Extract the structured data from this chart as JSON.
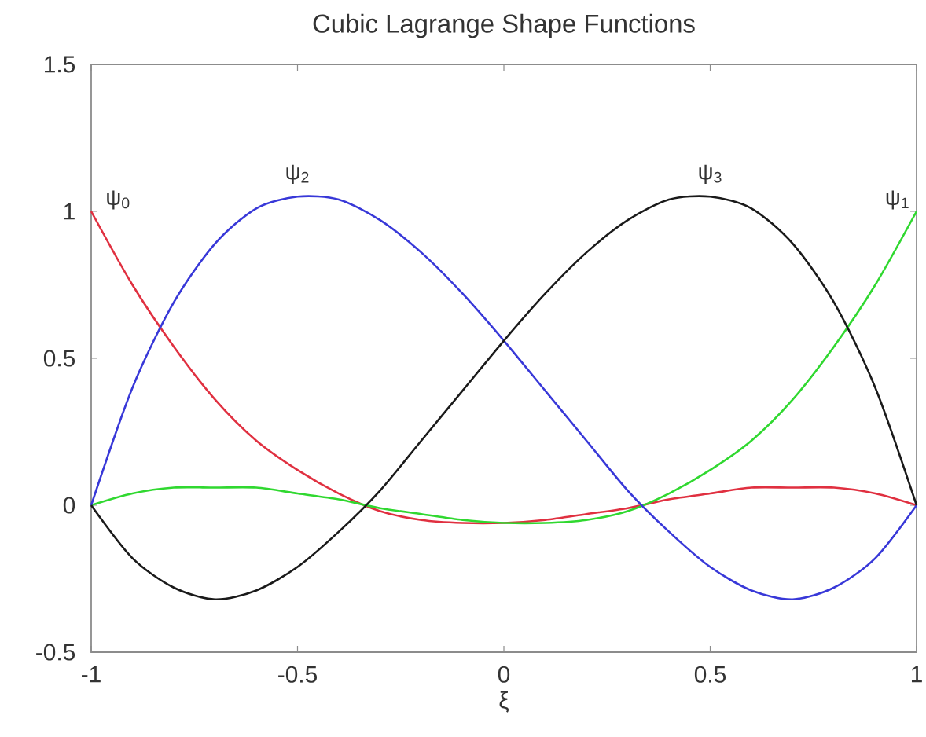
{
  "chart_data": {
    "type": "line",
    "title": "Cubic Lagrange Shape Functions",
    "xlabel": "ξ",
    "xlim": [
      -1,
      1
    ],
    "ylim": [
      -0.5,
      1.5
    ],
    "xticks": [
      -1,
      -0.5,
      0,
      0.5,
      1
    ],
    "yticks": [
      -0.5,
      0,
      0.5,
      1,
      1.5
    ],
    "x": [
      -1,
      -0.9,
      -0.8,
      -0.7,
      -0.6,
      -0.5,
      -0.4,
      -0.3,
      -0.2,
      -0.1,
      0,
      0.1,
      0.2,
      0.3,
      0.4,
      0.5,
      0.6,
      0.7,
      0.8,
      0.9,
      1
    ],
    "series": [
      {
        "name": "ψ$_{0}$",
        "color": "#e03040",
        "values": [
          1.0,
          0.75,
          0.54,
          0.36,
          0.22,
          0.12,
          0.04,
          -0.02,
          -0.05,
          -0.06,
          -0.06,
          -0.05,
          -0.03,
          -0.01,
          0.02,
          0.04,
          0.06,
          0.06,
          0.06,
          0.04,
          0
        ]
      },
      {
        "name": "ψ$_{1}$",
        "color": "#30d830",
        "values": [
          0,
          0.04,
          0.06,
          0.06,
          0.06,
          0.04,
          0.02,
          -0.01,
          -0.03,
          -0.05,
          -0.06,
          -0.06,
          -0.05,
          -0.02,
          0.04,
          0.12,
          0.22,
          0.36,
          0.54,
          0.75,
          1.0
        ]
      },
      {
        "name": "ψ$_{2}$",
        "color": "#3838d8",
        "values": [
          0,
          0.4,
          0.69,
          0.89,
          1.01,
          1.05,
          1.04,
          0.97,
          0.86,
          0.72,
          0.56,
          0.39,
          0.22,
          0.05,
          -0.09,
          -0.21,
          -0.29,
          -0.32,
          -0.28,
          -0.18,
          0
        ]
      },
      {
        "name": "ψ$_{3}$",
        "color": "#1a1a1a",
        "values": [
          0,
          -0.18,
          -0.28,
          -0.32,
          -0.29,
          -0.21,
          -0.09,
          0.05,
          0.22,
          0.39,
          0.56,
          0.72,
          0.86,
          0.97,
          1.04,
          1.05,
          1.01,
          0.89,
          0.69,
          0.4,
          0
        ]
      }
    ]
  }
}
